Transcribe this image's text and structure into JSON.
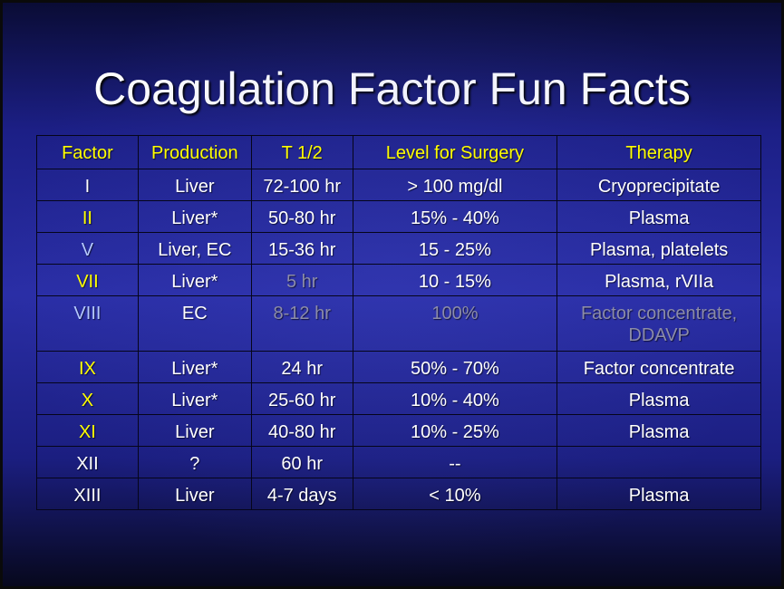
{
  "title": "Coagulation Factor Fun Facts",
  "colors": {
    "header_text": "#ffff00",
    "body_text": "#ffffff",
    "highlight_factor": "#ffff00",
    "light_blue_factor": "#b4c8ff",
    "dimmed_text": "#8c8ca8",
    "background": "#2a2ea6"
  },
  "table": {
    "headers": [
      "Factor",
      "Production",
      "T 1/2",
      "Level for Surgery",
      "Therapy"
    ],
    "rows": [
      {
        "factor": "I",
        "production": "Liver",
        "t_half": "72-100 hr",
        "level": "> 100 mg/dl",
        "therapy": "Cryoprecipitate"
      },
      {
        "factor": "II",
        "production": "Liver*",
        "t_half": "50-80 hr",
        "level": "15% - 40%",
        "therapy": "Plasma"
      },
      {
        "factor": "V",
        "production": "Liver, EC",
        "t_half": "15-36 hr",
        "level": "15 - 25%",
        "therapy": "Plasma, platelets"
      },
      {
        "factor": "VII",
        "production": "Liver*",
        "t_half": "5 hr",
        "level": "10 - 15%",
        "therapy": "Plasma, rVIIa"
      },
      {
        "factor": "VIII",
        "production": "EC",
        "t_half": "8-12 hr",
        "level": "100%",
        "therapy_line1": "Factor concentrate,",
        "therapy_line2": "DDAVP"
      },
      {
        "factor": "IX",
        "production": "Liver*",
        "t_half": "24 hr",
        "level": "50% - 70%",
        "therapy": "Factor concentrate"
      },
      {
        "factor": "X",
        "production": "Liver*",
        "t_half": "25-60 hr",
        "level": "10% - 40%",
        "therapy": "Plasma"
      },
      {
        "factor": "XI",
        "production": "Liver",
        "t_half": "40-80 hr",
        "level": "10% - 25%",
        "therapy": "Plasma"
      },
      {
        "factor": "XII",
        "production": "?",
        "t_half": "60 hr",
        "level": "--",
        "therapy": ""
      },
      {
        "factor": "XIII",
        "production": "Liver",
        "t_half": "4-7 days",
        "level": "< 10%",
        "therapy": "Plasma"
      }
    ]
  }
}
